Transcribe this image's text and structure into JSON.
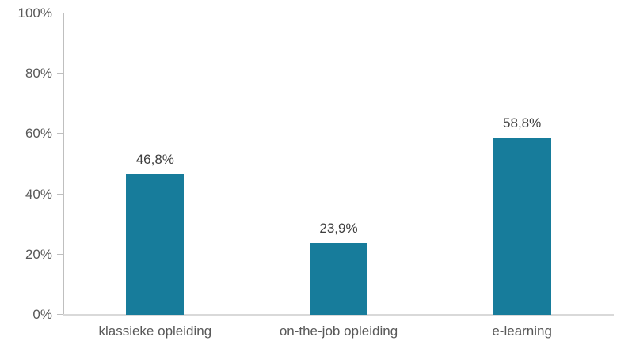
{
  "chart_data": {
    "type": "bar",
    "title": "",
    "xlabel": "",
    "ylabel": "",
    "categories": [
      "klassieke opleiding",
      "on-the-job opleiding",
      "e-learning"
    ],
    "values": [
      46.8,
      23.9,
      58.8
    ],
    "value_labels": [
      "46,8%",
      "23,9%",
      "58,8%"
    ],
    "ylim": [
      0,
      100
    ],
    "y_tick_values": [
      0,
      20,
      40,
      60,
      80,
      100
    ],
    "y_tick_labels": [
      "0%",
      "20%",
      "40%",
      "60%",
      "80%",
      "100%"
    ],
    "grid": false,
    "legend": "none",
    "colors": {
      "bar": "#177C9B",
      "y_axis_line": "#BFBFBF",
      "tick_mark": "#BFBFBF",
      "x_axis_line": "#D9D9D9",
      "y_tick_label": "#595959",
      "category_label": "#595959",
      "data_label": "#404040",
      "background": "#FFFFFF"
    }
  }
}
